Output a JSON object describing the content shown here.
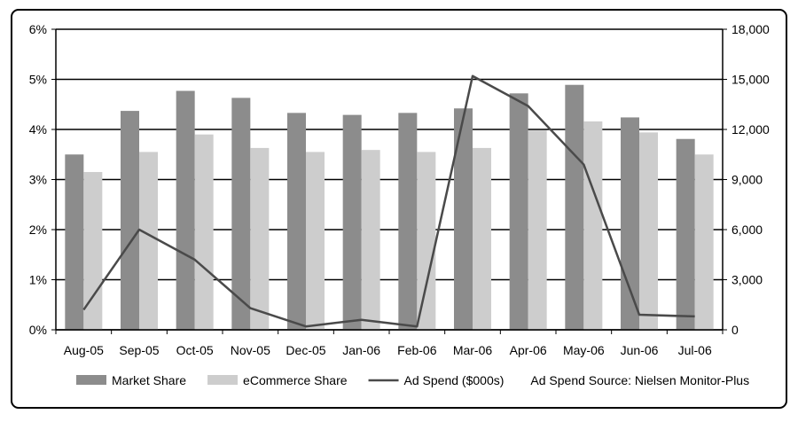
{
  "chart_data": {
    "type": "bar",
    "categories": [
      "Aug-05",
      "Sep-05",
      "Oct-05",
      "Nov-05",
      "Dec-05",
      "Jan-06",
      "Feb-06",
      "Mar-06",
      "Apr-06",
      "May-06",
      "Jun-06",
      "Jul-06"
    ],
    "series": [
      {
        "name": "Market Share",
        "type": "bar",
        "axis": "left",
        "color": "#8c8c8c",
        "values": [
          3.5,
          4.37,
          4.77,
          4.63,
          4.33,
          4.29,
          4.33,
          4.42,
          4.72,
          4.89,
          4.24,
          3.81
        ]
      },
      {
        "name": "eCommerce Share",
        "type": "bar",
        "axis": "left",
        "color": "#cdcdcd",
        "values": [
          3.15,
          3.55,
          3.9,
          3.63,
          3.55,
          3.59,
          3.55,
          3.63,
          3.98,
          4.16,
          3.94,
          3.5
        ]
      },
      {
        "name": "Ad Spend ($000s)",
        "type": "line",
        "axis": "right",
        "color": "#4a4a4a",
        "values": [
          1200,
          6000,
          4200,
          1300,
          200,
          600,
          200,
          15200,
          13400,
          9900,
          900,
          800
        ]
      }
    ],
    "y_left": {
      "min": 0,
      "max": 6,
      "ticks": [
        "0%",
        "1%",
        "2%",
        "3%",
        "4%",
        "5%",
        "6%"
      ]
    },
    "y_right": {
      "min": 0,
      "max": 18000,
      "ticks": [
        "0",
        "3,000",
        "6,000",
        "9,000",
        "12,000",
        "15,000",
        "18,000"
      ]
    },
    "grid": true,
    "legend_position": "bottom",
    "legend_note": "Ad Spend Source: Nielsen Monitor-Plus"
  }
}
